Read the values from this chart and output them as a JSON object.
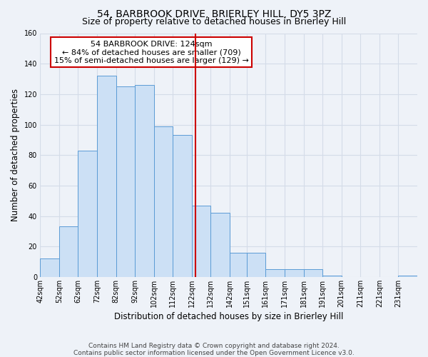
{
  "title": "54, BARBROOK DRIVE, BRIERLEY HILL, DY5 3PZ",
  "subtitle": "Size of property relative to detached houses in Brierley Hill",
  "xlabel": "Distribution of detached houses by size in Brierley Hill",
  "ylabel": "Number of detached properties",
  "footer_line1": "Contains HM Land Registry data © Crown copyright and database right 2024.",
  "footer_line2": "Contains public sector information licensed under the Open Government Licence v3.0.",
  "annotation_title": "54 BARBROOK DRIVE: 124sqm",
  "annotation_line1": "← 84% of detached houses are smaller (709)",
  "annotation_line2": "15% of semi-detached houses are larger (129) →",
  "property_size": 124,
  "bar_color": "#cce0f5",
  "bar_edge_color": "#5b9bd5",
  "vline_color": "#cc0000",
  "grid_color": "#d4dce8",
  "background_color": "#eef2f8",
  "bins": [
    42,
    52,
    62,
    72,
    82,
    92,
    102,
    112,
    122,
    132,
    142,
    151,
    161,
    171,
    181,
    191,
    201,
    211,
    221,
    231,
    241
  ],
  "counts": [
    12,
    33,
    83,
    132,
    125,
    126,
    99,
    93,
    47,
    42,
    16,
    16,
    5,
    5,
    5,
    1,
    0,
    0,
    0,
    1
  ],
  "ylim": [
    0,
    160
  ],
  "yticks": [
    0,
    20,
    40,
    60,
    80,
    100,
    120,
    140,
    160
  ],
  "annotation_box_color": "#ffffff",
  "annotation_box_edge": "#cc0000",
  "title_fontsize": 10,
  "subtitle_fontsize": 9,
  "axis_label_fontsize": 8.5,
  "tick_fontsize": 7,
  "annotation_fontsize": 8,
  "footer_fontsize": 6.5
}
